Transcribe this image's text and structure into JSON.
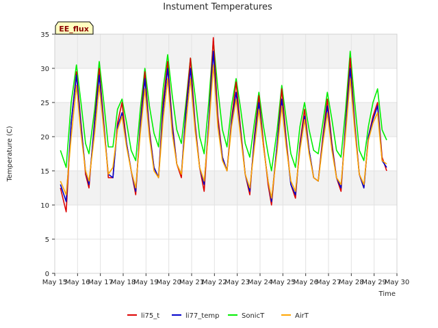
{
  "chart_data": {
    "type": "line",
    "title": "Instument Temperatures",
    "xlabel": "Time",
    "ylabel": "Temperature (C)",
    "ylim": [
      0,
      35
    ],
    "xlim": [
      0,
      15
    ],
    "x_unit": "days since May 15",
    "x_ticks": [
      {
        "x": 0,
        "label": "May 15"
      },
      {
        "x": 1,
        "label": "May 16"
      },
      {
        "x": 2,
        "label": "May 17"
      },
      {
        "x": 3,
        "label": "May 18"
      },
      {
        "x": 4,
        "label": "May 19"
      },
      {
        "x": 5,
        "label": "May 20"
      },
      {
        "x": 6,
        "label": "May 21"
      },
      {
        "x": 7,
        "label": "May 22"
      },
      {
        "x": 8,
        "label": "May 23"
      },
      {
        "x": 9,
        "label": "May 24"
      },
      {
        "x": 10,
        "label": "May 25"
      },
      {
        "x": 11,
        "label": "May 26"
      },
      {
        "x": 12,
        "label": "May 27"
      },
      {
        "x": 13,
        "label": "May 28"
      },
      {
        "x": 14,
        "label": "May 29"
      },
      {
        "x": 15,
        "label": "May 30"
      }
    ],
    "y_ticks": [
      0,
      5,
      10,
      15,
      20,
      25,
      30,
      35
    ],
    "grid": true,
    "bands": [
      [
        10,
        15
      ],
      [
        20,
        25
      ],
      [
        30,
        35
      ]
    ],
    "annotation": "EE_flux",
    "legend_position": "bottom",
    "series": [
      {
        "name": "li75_t",
        "color": "#dd0000",
        "points": [
          [
            0.25,
            12.5
          ],
          [
            0.5,
            9.0
          ],
          [
            0.72,
            22.0
          ],
          [
            0.95,
            29.5
          ],
          [
            1.15,
            22.0
          ],
          [
            1.35,
            14.5
          ],
          [
            1.5,
            12.5
          ],
          [
            1.75,
            22.5
          ],
          [
            1.95,
            30.0
          ],
          [
            2.15,
            22.0
          ],
          [
            2.35,
            14.0
          ],
          [
            2.55,
            14.0
          ],
          [
            2.75,
            22.0
          ],
          [
            2.95,
            25.0
          ],
          [
            3.15,
            19.0
          ],
          [
            3.35,
            15.0
          ],
          [
            3.55,
            11.5
          ],
          [
            3.75,
            22.0
          ],
          [
            3.95,
            29.5
          ],
          [
            4.15,
            21.0
          ],
          [
            4.35,
            15.5
          ],
          [
            4.55,
            14.0
          ],
          [
            4.75,
            25.0
          ],
          [
            4.95,
            31.0
          ],
          [
            5.15,
            22.0
          ],
          [
            5.35,
            16.0
          ],
          [
            5.55,
            14.0
          ],
          [
            5.75,
            24.0
          ],
          [
            5.95,
            31.5
          ],
          [
            6.15,
            22.0
          ],
          [
            6.35,
            15.5
          ],
          [
            6.55,
            12.0
          ],
          [
            6.75,
            22.0
          ],
          [
            6.95,
            34.5
          ],
          [
            7.15,
            23.0
          ],
          [
            7.35,
            17.0
          ],
          [
            7.55,
            15.0
          ],
          [
            7.75,
            22.5
          ],
          [
            7.95,
            28.0
          ],
          [
            8.15,
            21.0
          ],
          [
            8.35,
            14.5
          ],
          [
            8.55,
            11.5
          ],
          [
            8.75,
            20.0
          ],
          [
            8.95,
            26.0
          ],
          [
            9.15,
            19.0
          ],
          [
            9.35,
            13.0
          ],
          [
            9.5,
            10.0
          ],
          [
            9.75,
            19.0
          ],
          [
            9.95,
            27.0
          ],
          [
            10.15,
            19.5
          ],
          [
            10.35,
            13.0
          ],
          [
            10.55,
            11.0
          ],
          [
            10.75,
            19.0
          ],
          [
            10.95,
            24.0
          ],
          [
            11.15,
            18.0
          ],
          [
            11.35,
            14.0
          ],
          [
            11.55,
            13.5
          ],
          [
            11.75,
            20.0
          ],
          [
            11.95,
            25.5
          ],
          [
            12.15,
            19.0
          ],
          [
            12.35,
            14.0
          ],
          [
            12.55,
            12.0
          ],
          [
            12.75,
            22.0
          ],
          [
            12.95,
            31.5
          ],
          [
            13.15,
            22.0
          ],
          [
            13.35,
            14.5
          ],
          [
            13.55,
            12.5
          ],
          [
            13.75,
            20.0
          ],
          [
            13.95,
            23.0
          ],
          [
            14.15,
            25.0
          ],
          [
            14.35,
            17.0
          ],
          [
            14.55,
            15.0
          ]
        ]
      },
      {
        "name": "li77_temp",
        "color": "#0000cc",
        "points": [
          [
            0.25,
            13.0
          ],
          [
            0.5,
            10.5
          ],
          [
            0.72,
            22.0
          ],
          [
            0.95,
            29.0
          ],
          [
            1.15,
            21.5
          ],
          [
            1.35,
            15.0
          ],
          [
            1.5,
            13.0
          ],
          [
            1.75,
            22.0
          ],
          [
            1.95,
            29.0
          ],
          [
            2.15,
            21.5
          ],
          [
            2.35,
            14.5
          ],
          [
            2.55,
            14.0
          ],
          [
            2.75,
            21.5
          ],
          [
            2.95,
            23.5
          ],
          [
            3.15,
            19.0
          ],
          [
            3.35,
            15.0
          ],
          [
            3.55,
            12.0
          ],
          [
            3.75,
            21.5
          ],
          [
            3.95,
            28.5
          ],
          [
            4.15,
            20.5
          ],
          [
            4.35,
            15.5
          ],
          [
            4.55,
            14.0
          ],
          [
            4.75,
            24.0
          ],
          [
            4.95,
            30.0
          ],
          [
            5.15,
            21.5
          ],
          [
            5.35,
            16.0
          ],
          [
            5.55,
            14.5
          ],
          [
            5.75,
            23.5
          ],
          [
            5.95,
            30.0
          ],
          [
            6.15,
            21.5
          ],
          [
            6.35,
            15.5
          ],
          [
            6.55,
            13.0
          ],
          [
            6.75,
            22.0
          ],
          [
            6.95,
            32.5
          ],
          [
            7.15,
            22.0
          ],
          [
            7.35,
            17.0
          ],
          [
            7.55,
            15.0
          ],
          [
            7.75,
            22.0
          ],
          [
            7.95,
            26.5
          ],
          [
            8.15,
            20.5
          ],
          [
            8.35,
            14.5
          ],
          [
            8.55,
            12.0
          ],
          [
            8.75,
            19.5
          ],
          [
            8.95,
            25.0
          ],
          [
            9.15,
            18.5
          ],
          [
            9.35,
            13.5
          ],
          [
            9.5,
            10.5
          ],
          [
            9.75,
            19.0
          ],
          [
            9.95,
            25.5
          ],
          [
            10.15,
            19.0
          ],
          [
            10.35,
            13.0
          ],
          [
            10.55,
            11.5
          ],
          [
            10.75,
            18.5
          ],
          [
            10.95,
            23.0
          ],
          [
            11.15,
            18.0
          ],
          [
            11.35,
            14.0
          ],
          [
            11.55,
            13.5
          ],
          [
            11.75,
            19.5
          ],
          [
            11.95,
            24.5
          ],
          [
            12.15,
            18.5
          ],
          [
            12.35,
            14.0
          ],
          [
            12.55,
            12.5
          ],
          [
            12.75,
            21.5
          ],
          [
            12.95,
            30.0
          ],
          [
            13.15,
            21.5
          ],
          [
            13.35,
            14.5
          ],
          [
            13.55,
            12.5
          ],
          [
            13.75,
            20.0
          ],
          [
            13.95,
            22.5
          ],
          [
            14.15,
            24.5
          ],
          [
            14.35,
            16.5
          ],
          [
            14.55,
            15.5
          ]
        ]
      },
      {
        "name": "SonicT",
        "color": "#00ee00",
        "points": [
          [
            0.25,
            18.0
          ],
          [
            0.5,
            15.5
          ],
          [
            0.72,
            25.0
          ],
          [
            0.95,
            30.5
          ],
          [
            1.15,
            25.0
          ],
          [
            1.35,
            19.0
          ],
          [
            1.5,
            17.5
          ],
          [
            1.75,
            24.0
          ],
          [
            1.95,
            31.0
          ],
          [
            2.15,
            25.0
          ],
          [
            2.35,
            18.5
          ],
          [
            2.55,
            18.5
          ],
          [
            2.75,
            24.0
          ],
          [
            2.95,
            25.5
          ],
          [
            3.15,
            22.0
          ],
          [
            3.35,
            18.0
          ],
          [
            3.55,
            16.5
          ],
          [
            3.75,
            24.0
          ],
          [
            3.95,
            30.0
          ],
          [
            4.15,
            24.5
          ],
          [
            4.35,
            20.5
          ],
          [
            4.55,
            18.5
          ],
          [
            4.75,
            27.0
          ],
          [
            4.95,
            32.0
          ],
          [
            5.15,
            26.0
          ],
          [
            5.35,
            21.0
          ],
          [
            5.55,
            19.0
          ],
          [
            5.75,
            25.0
          ],
          [
            5.95,
            31.5
          ],
          [
            6.15,
            26.0
          ],
          [
            6.35,
            20.0
          ],
          [
            6.55,
            17.5
          ],
          [
            6.75,
            25.0
          ],
          [
            6.95,
            34.0
          ],
          [
            7.15,
            27.0
          ],
          [
            7.35,
            21.0
          ],
          [
            7.55,
            18.5
          ],
          [
            7.75,
            24.5
          ],
          [
            7.95,
            28.5
          ],
          [
            8.15,
            24.0
          ],
          [
            8.35,
            19.0
          ],
          [
            8.55,
            17.0
          ],
          [
            8.75,
            22.0
          ],
          [
            8.95,
            26.5
          ],
          [
            9.15,
            21.5
          ],
          [
            9.35,
            17.5
          ],
          [
            9.5,
            15.0
          ],
          [
            9.75,
            21.0
          ],
          [
            9.95,
            27.5
          ],
          [
            10.15,
            22.5
          ],
          [
            10.35,
            17.5
          ],
          [
            10.55,
            15.5
          ],
          [
            10.75,
            21.5
          ],
          [
            10.95,
            25.0
          ],
          [
            11.15,
            21.0
          ],
          [
            11.35,
            18.0
          ],
          [
            11.55,
            17.5
          ],
          [
            11.75,
            22.0
          ],
          [
            11.95,
            26.5
          ],
          [
            12.15,
            22.5
          ],
          [
            12.35,
            18.0
          ],
          [
            12.55,
            17.0
          ],
          [
            12.75,
            24.0
          ],
          [
            12.95,
            32.5
          ],
          [
            13.15,
            25.0
          ],
          [
            13.35,
            18.0
          ],
          [
            13.55,
            16.5
          ],
          [
            13.75,
            21.5
          ],
          [
            13.95,
            25.0
          ],
          [
            14.15,
            27.0
          ],
          [
            14.35,
            21.0
          ],
          [
            14.55,
            19.5
          ]
        ]
      },
      {
        "name": "AirT",
        "color": "#ffa500",
        "points": [
          [
            0.25,
            13.5
          ],
          [
            0.5,
            11.5
          ],
          [
            0.72,
            20.0
          ],
          [
            0.95,
            27.5
          ],
          [
            1.15,
            20.5
          ],
          [
            1.35,
            15.0
          ],
          [
            1.5,
            13.5
          ],
          [
            1.75,
            20.5
          ],
          [
            1.95,
            27.5
          ],
          [
            2.15,
            21.0
          ],
          [
            2.35,
            14.5
          ],
          [
            2.55,
            15.5
          ],
          [
            2.75,
            21.0
          ],
          [
            2.95,
            23.0
          ],
          [
            3.15,
            18.5
          ],
          [
            3.35,
            15.0
          ],
          [
            3.55,
            12.5
          ],
          [
            3.75,
            20.5
          ],
          [
            3.95,
            27.0
          ],
          [
            4.15,
            20.0
          ],
          [
            4.35,
            15.0
          ],
          [
            4.55,
            14.0
          ],
          [
            4.75,
            22.5
          ],
          [
            4.95,
            28.5
          ],
          [
            5.15,
            20.5
          ],
          [
            5.35,
            16.0
          ],
          [
            5.55,
            14.5
          ],
          [
            5.75,
            22.0
          ],
          [
            5.95,
            28.5
          ],
          [
            6.15,
            21.0
          ],
          [
            6.35,
            15.5
          ],
          [
            6.55,
            13.5
          ],
          [
            6.75,
            21.0
          ],
          [
            6.95,
            30.5
          ],
          [
            7.15,
            21.5
          ],
          [
            7.35,
            16.5
          ],
          [
            7.55,
            15.0
          ],
          [
            7.75,
            21.5
          ],
          [
            7.95,
            25.5
          ],
          [
            8.15,
            20.0
          ],
          [
            8.35,
            14.5
          ],
          [
            8.55,
            12.5
          ],
          [
            8.75,
            18.5
          ],
          [
            8.95,
            24.0
          ],
          [
            9.15,
            18.5
          ],
          [
            9.35,
            13.5
          ],
          [
            9.5,
            11.0
          ],
          [
            9.75,
            18.0
          ],
          [
            9.95,
            24.5
          ],
          [
            10.15,
            18.5
          ],
          [
            10.35,
            13.5
          ],
          [
            10.55,
            12.0
          ],
          [
            10.75,
            18.0
          ],
          [
            10.95,
            22.5
          ],
          [
            11.15,
            17.5
          ],
          [
            11.35,
            14.0
          ],
          [
            11.55,
            13.5
          ],
          [
            11.75,
            19.0
          ],
          [
            11.95,
            23.5
          ],
          [
            12.15,
            18.0
          ],
          [
            12.35,
            14.0
          ],
          [
            12.55,
            13.0
          ],
          [
            12.75,
            20.5
          ],
          [
            12.95,
            28.5
          ],
          [
            13.15,
            21.0
          ],
          [
            13.35,
            14.5
          ],
          [
            13.55,
            13.0
          ],
          [
            13.75,
            19.5
          ],
          [
            13.95,
            22.0
          ],
          [
            14.15,
            23.5
          ],
          [
            14.35,
            16.5
          ],
          [
            14.55,
            16.0
          ]
        ]
      }
    ]
  }
}
